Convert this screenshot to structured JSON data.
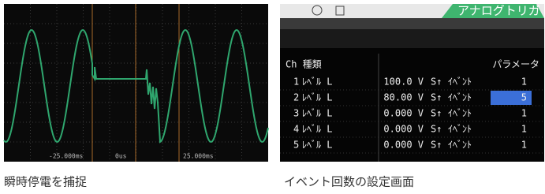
{
  "left": {
    "axis_labels": [
      "-25.000ms",
      "0us",
      "25.000ms"
    ],
    "caption": "瞬時停電を捕捉"
  },
  "right": {
    "tab_title": "アナログトリガ",
    "header": [
      "Ch 種類",
      "パラメータ"
    ],
    "rows": [
      [
        "1",
        "ﾚﾍﾞﾙ L",
        "100.0 V",
        "S↑",
        "ｲﾍﾞﾝﾄ",
        "1"
      ],
      [
        "2",
        "ﾚﾍﾞﾙ L",
        "80.00 V",
        "S↑",
        "ｲﾍﾞﾝﾄ",
        "5"
      ],
      [
        "3",
        "ﾚﾍﾞﾙ L",
        "0.000 V",
        "S↑",
        "ｲﾍﾞﾝﾄ",
        "1"
      ],
      [
        "4",
        "ﾚﾍﾞﾙ L",
        "0.000 V",
        "S↑",
        "ｲﾍﾞﾝﾄ",
        "1"
      ],
      [
        "5",
        "ﾚﾍﾞﾙ L",
        "0.000 V",
        "S↑",
        "ｲﾍﾞﾝﾄ",
        "1"
      ]
    ],
    "caption": "イベント回数の設定画面"
  }
}
